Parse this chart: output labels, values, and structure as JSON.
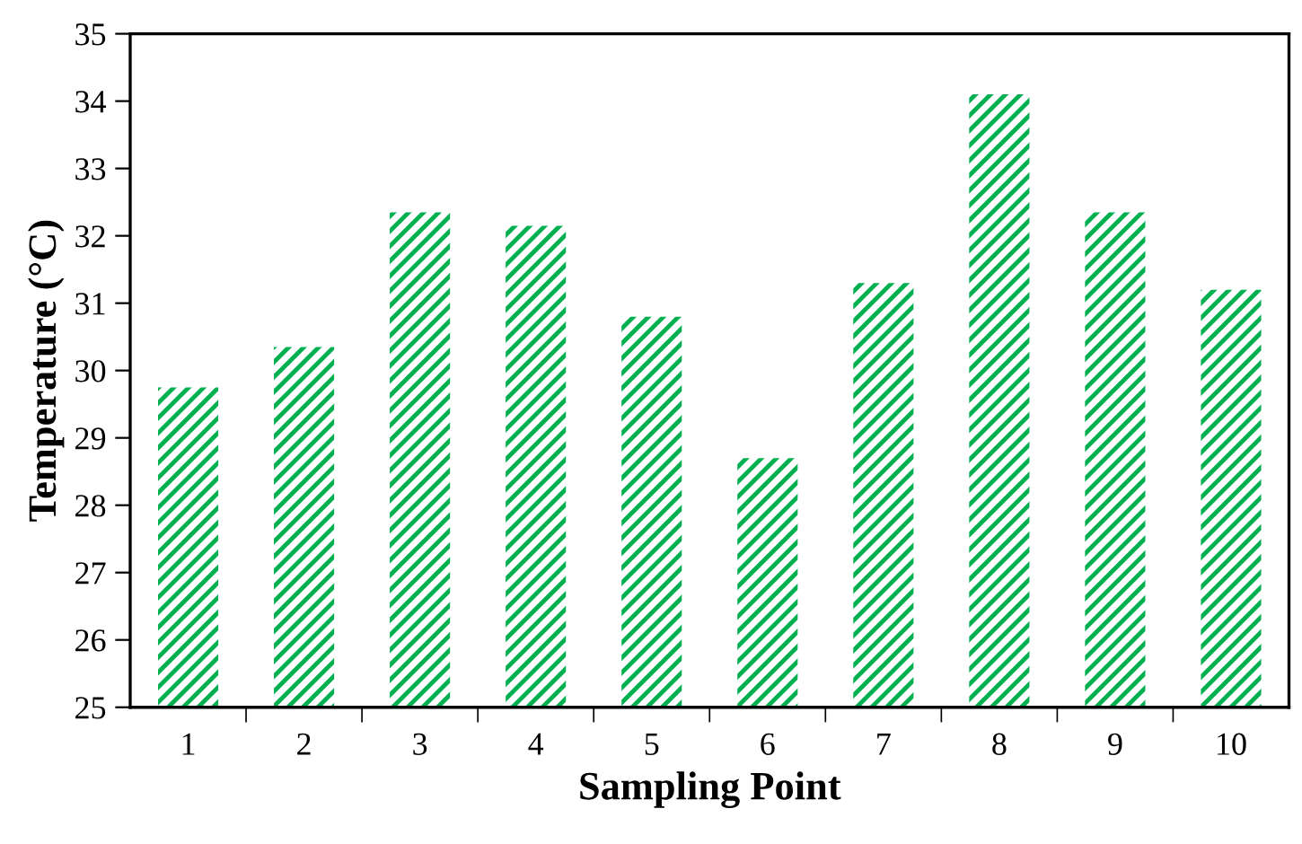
{
  "chart_data": {
    "type": "bar",
    "xlabel": "Sampling Point",
    "ylabel": "Temperature (°C)",
    "categories": [
      "1",
      "2",
      "3",
      "4",
      "5",
      "6",
      "7",
      "8",
      "9",
      "10"
    ],
    "values": [
      29.75,
      30.35,
      32.35,
      32.15,
      30.8,
      28.7,
      31.3,
      34.1,
      32.35,
      31.2
    ],
    "color": "#00b050",
    "ylim": [
      25,
      35
    ],
    "yticks": [
      25,
      26,
      27,
      28,
      29,
      30,
      31,
      32,
      33,
      34,
      35
    ],
    "grid": false
  }
}
